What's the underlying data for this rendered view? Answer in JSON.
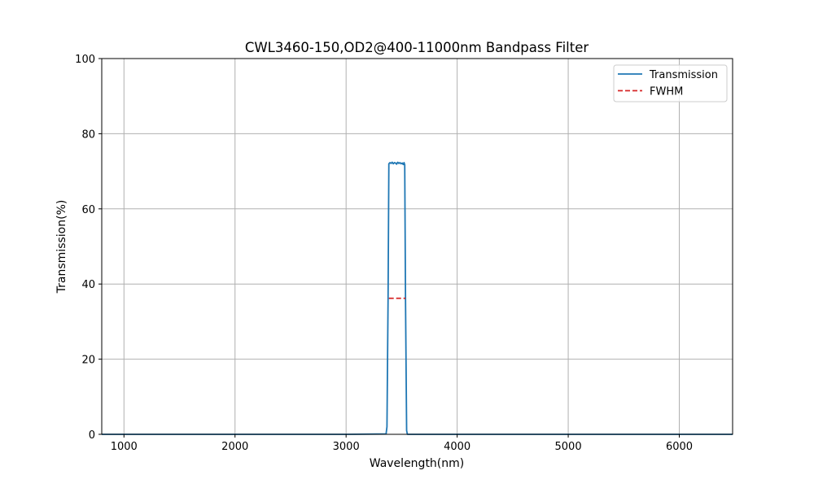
{
  "chart_data": {
    "type": "line",
    "title": "CWL3460-150,OD2@400-11000nm Bandpass Filter",
    "xlabel": "Wavelength(nm)",
    "ylabel": "Transmission(%)",
    "xlim": [
      800,
      6480
    ],
    "ylim": [
      0,
      100
    ],
    "xticks": [
      1000,
      2000,
      3000,
      4000,
      5000,
      6000
    ],
    "yticks": [
      0,
      20,
      40,
      60,
      80,
      100
    ],
    "grid": true,
    "legend_position": "top-right",
    "series": [
      {
        "name": "Transmission",
        "color": "#1f77b4",
        "style": "solid",
        "x": [
          800,
          3000,
          3360,
          3368,
          3378,
          3385,
          3395,
          3405,
          3415,
          3425,
          3435,
          3445,
          3455,
          3465,
          3475,
          3485,
          3495,
          3505,
          3515,
          3522,
          3528,
          3535,
          3545,
          3552,
          4000,
          6480
        ],
        "y": [
          0,
          0,
          0.1,
          2,
          36,
          72.0,
          72.3,
          72.1,
          72.4,
          72.0,
          72.3,
          72.2,
          71.9,
          72.4,
          72.1,
          72.3,
          72.0,
          72.2,
          71.8,
          72.3,
          71.7,
          36,
          1,
          0,
          0,
          0
        ]
      },
      {
        "name": "FWHM",
        "color": "#d62728",
        "style": "dashed",
        "x": [
          3385,
          3535
        ],
        "y": [
          36.2,
          36.2
        ]
      }
    ]
  }
}
